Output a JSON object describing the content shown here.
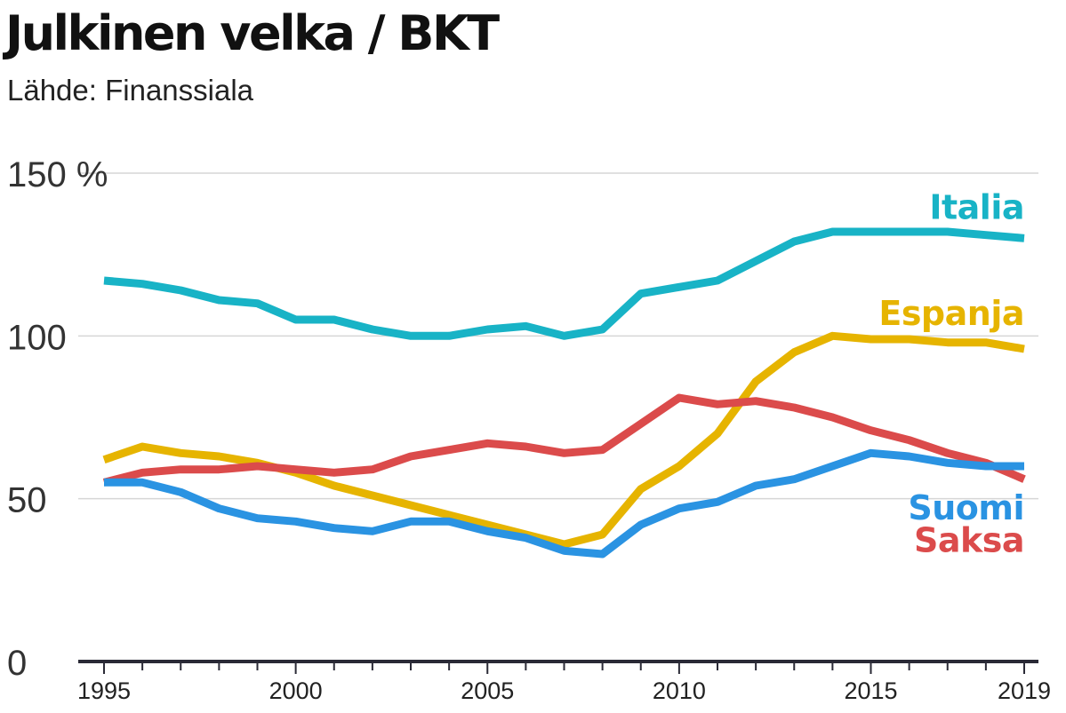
{
  "title": "Julkinen velka / BKT",
  "source": "Lähde: Finanssiala",
  "chart_data": {
    "type": "line",
    "title": "Julkinen velka / BKT",
    "subtitle": "Lähde: Finanssiala",
    "xlabel": "",
    "ylabel": "",
    "x": [
      1995,
      1996,
      1997,
      1998,
      1999,
      2000,
      2001,
      2002,
      2003,
      2004,
      2005,
      2006,
      2007,
      2008,
      2009,
      2010,
      2011,
      2012,
      2013,
      2014,
      2015,
      2016,
      2017,
      2018,
      2019
    ],
    "xlim": [
      1995,
      2019
    ],
    "ylim": [
      0,
      150
    ],
    "y_ticks": [
      0,
      50,
      100,
      150
    ],
    "y_tick_labels": [
      "0",
      "50",
      "100",
      "150 %"
    ],
    "x_tick_labels": [
      "1995",
      "2000",
      "2005",
      "2010",
      "2015",
      "2019"
    ],
    "grid": true,
    "legend": "inline labels at right end of lines",
    "series": [
      {
        "name": "Italia",
        "color": "#18b3c6",
        "values": [
          117,
          116,
          114,
          111,
          110,
          105,
          105,
          102,
          100,
          100,
          102,
          103,
          100,
          102,
          113,
          115,
          117,
          123,
          129,
          132,
          132,
          132,
          132,
          131,
          130
        ]
      },
      {
        "name": "Espanja",
        "color": "#e6b400",
        "values": [
          62,
          66,
          64,
          63,
          61,
          58,
          54,
          51,
          48,
          45,
          42,
          39,
          36,
          39,
          53,
          60,
          70,
          86,
          95,
          100,
          99,
          99,
          98,
          98,
          96
        ]
      },
      {
        "name": "Saksa",
        "color": "#db4b4b",
        "values": [
          55,
          58,
          59,
          59,
          60,
          59,
          58,
          59,
          63,
          65,
          67,
          66,
          64,
          65,
          73,
          81,
          79,
          80,
          78,
          75,
          71,
          68,
          64,
          61,
          56
        ]
      },
      {
        "name": "Suomi",
        "color": "#2a93e2",
        "values": [
          55,
          55,
          52,
          47,
          44,
          43,
          41,
          40,
          43,
          43,
          40,
          38,
          34,
          33,
          42,
          47,
          49,
          54,
          56,
          60,
          64,
          63,
          61,
          60,
          60
        ]
      }
    ]
  }
}
